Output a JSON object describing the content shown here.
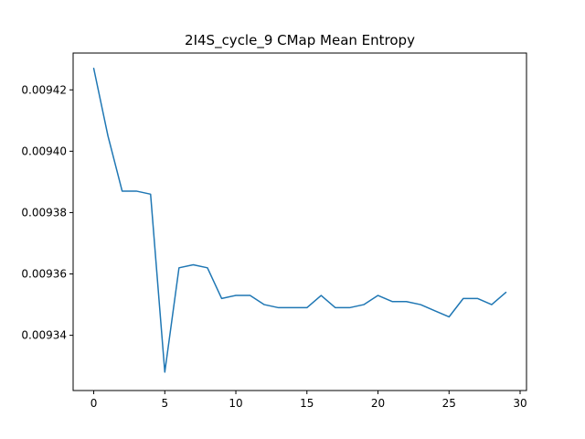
{
  "chart_data": {
    "type": "line",
    "title": "2I4S_cycle_9 CMap Mean Entropy",
    "xlabel": "",
    "ylabel": "",
    "xlim": [
      -1.45,
      30.45
    ],
    "ylim": [
      0.009322,
      0.009432
    ],
    "grid": false,
    "legend": "none",
    "x_ticks": [
      0,
      5,
      10,
      15,
      20,
      25,
      30
    ],
    "x_tick_labels": [
      "0",
      "5",
      "10",
      "15",
      "20",
      "25",
      "30"
    ],
    "y_ticks": [
      0.00934,
      0.00936,
      0.00938,
      0.0094,
      0.00942
    ],
    "y_tick_labels": [
      "0.00934",
      "0.00936",
      "0.00938",
      "0.00940",
      "0.00942"
    ],
    "series": [
      {
        "color": "#1f77b4",
        "x": [
          0,
          1,
          2,
          3,
          4,
          5,
          6,
          7,
          8,
          9,
          10,
          11,
          12,
          13,
          14,
          15,
          16,
          17,
          18,
          19,
          20,
          21,
          22,
          23,
          24,
          25,
          26,
          27,
          28,
          29
        ],
        "y": [
          0.009427,
          0.009405,
          0.009387,
          0.009387,
          0.009386,
          0.009328,
          0.009362,
          0.009363,
          0.009362,
          0.009352,
          0.009353,
          0.009353,
          0.00935,
          0.009349,
          0.009349,
          0.009349,
          0.009353,
          0.009349,
          0.009349,
          0.00935,
          0.009353,
          0.009351,
          0.009351,
          0.00935,
          0.009348,
          0.009346,
          0.009352,
          0.009352,
          0.00935,
          0.009354
        ]
      }
    ]
  }
}
